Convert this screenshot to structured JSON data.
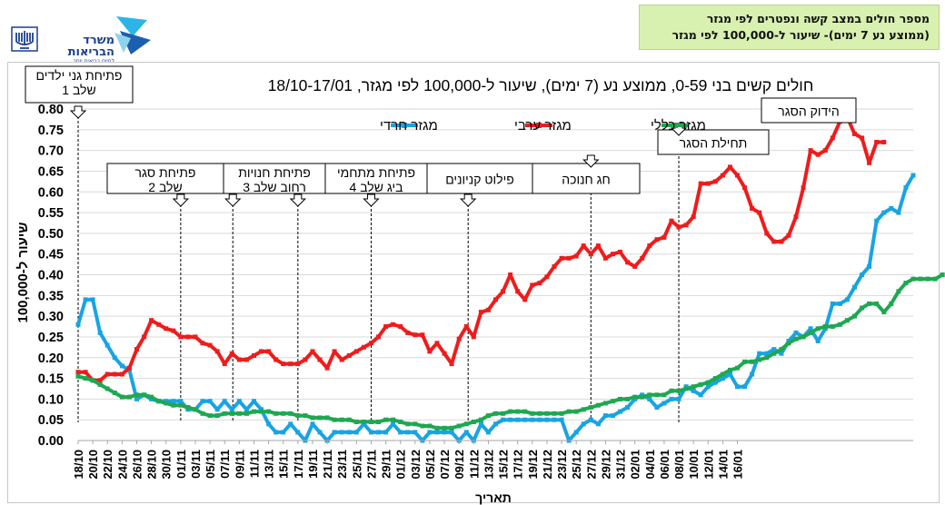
{
  "header": {
    "line1": "מספר חולים במצב קשה ונפטרים לפי מגזר",
    "line2": "(ממוצע נע 7 ימים)- שיעור ל-100,000 לפי מגזר"
  },
  "logo": {
    "name_line1": "משרד",
    "name_line2": "הבריאות",
    "tagline": "לחיים בריאים יותר"
  },
  "colors": {
    "haredi": "#18a4e3",
    "arab": "#ee1c1c",
    "general": "#1fa752"
  },
  "chart_data": {
    "type": "line",
    "title": "חולים קשים בני 0-59, ממוצע נע (7 ימים), שיעור ל-100,000 לפי מגזר, 18/10-17/01",
    "xlabel": "תאריך",
    "ylabel": "שיעור ל-100,000",
    "ylim": [
      0,
      0.8
    ],
    "y_ticks": [
      "0.00",
      "0.05",
      "0.10",
      "0.15",
      "0.20",
      "0.25",
      "0.30",
      "0.35",
      "0.40",
      "0.45",
      "0.50",
      "0.55",
      "0.60",
      "0.65",
      "0.70",
      "0.75",
      "0.80"
    ],
    "x_ticks": [
      "18/10",
      "20/10",
      "22/10",
      "24/10",
      "26/10",
      "28/10",
      "30/10",
      "01/11",
      "03/11",
      "05/11",
      "07/11",
      "09/11",
      "11/11",
      "13/11",
      "15/11",
      "17/11",
      "19/11",
      "21/11",
      "23/11",
      "25/11",
      "27/11",
      "29/11",
      "01/12",
      "03/12",
      "05/12",
      "07/12",
      "09/12",
      "11/12",
      "13/12",
      "15/12",
      "17/12",
      "19/12",
      "21/12",
      "23/12",
      "25/12",
      "27/12",
      "29/12",
      "31/12",
      "02/01",
      "04/01",
      "06/01",
      "08/01",
      "10/01",
      "12/01",
      "14/01",
      "16/01"
    ],
    "legend_position": "top",
    "series": [
      {
        "name": "מגזר חרדי",
        "color": "#18a4e3",
        "values": [
          0.28,
          0.34,
          0.34,
          0.26,
          0.23,
          0.2,
          0.18,
          0.17,
          0.1,
          0.11,
          0.1,
          0.095,
          0.095,
          0.095,
          0.095,
          0.075,
          0.075,
          0.095,
          0.095,
          0.075,
          0.095,
          0.075,
          0.095,
          0.075,
          0.095,
          0.075,
          0.04,
          0.02,
          0.02,
          0.04,
          0.02,
          0.0,
          0.04,
          0.02,
          0.0,
          0.02,
          0.02,
          0.02,
          0.02,
          0.04,
          0.02,
          0.02,
          0.02,
          0.04,
          0.02,
          0.02,
          0.02,
          0.0,
          0.02,
          0.02,
          0.02,
          0.02,
          0.0,
          0.02,
          0.0,
          0.04,
          0.02,
          0.04,
          0.05,
          0.05,
          0.05,
          0.05,
          0.05,
          0.05,
          0.05,
          0.05,
          0.05,
          0.0,
          0.02,
          0.04,
          0.05,
          0.04,
          0.06,
          0.06,
          0.07,
          0.08,
          0.1,
          0.11,
          0.1,
          0.08,
          0.09,
          0.1,
          0.1,
          0.13,
          0.12,
          0.11,
          0.13,
          0.14,
          0.15,
          0.16,
          0.13,
          0.13,
          0.16,
          0.21,
          0.21,
          0.22,
          0.21,
          0.24,
          0.26,
          0.25,
          0.27,
          0.24,
          0.27,
          0.33,
          0.33,
          0.34,
          0.37,
          0.4,
          0.42,
          0.53,
          0.55,
          0.56,
          0.55,
          0.61,
          0.64
        ]
      },
      {
        "name": "מגזר ערבי",
        "color": "#ee1c1c",
        "values": [
          0.165,
          0.165,
          0.145,
          0.145,
          0.16,
          0.16,
          0.16,
          0.175,
          0.22,
          0.25,
          0.29,
          0.28,
          0.27,
          0.265,
          0.25,
          0.25,
          0.25,
          0.235,
          0.23,
          0.215,
          0.185,
          0.21,
          0.195,
          0.195,
          0.205,
          0.215,
          0.215,
          0.195,
          0.185,
          0.185,
          0.185,
          0.195,
          0.215,
          0.195,
          0.175,
          0.215,
          0.195,
          0.205,
          0.215,
          0.225,
          0.235,
          0.25,
          0.275,
          0.28,
          0.275,
          0.26,
          0.255,
          0.255,
          0.215,
          0.235,
          0.21,
          0.185,
          0.245,
          0.275,
          0.25,
          0.31,
          0.315,
          0.34,
          0.36,
          0.4,
          0.36,
          0.34,
          0.375,
          0.38,
          0.395,
          0.42,
          0.44,
          0.44,
          0.445,
          0.47,
          0.45,
          0.47,
          0.44,
          0.45,
          0.455,
          0.43,
          0.42,
          0.44,
          0.47,
          0.485,
          0.49,
          0.53,
          0.515,
          0.52,
          0.54,
          0.62,
          0.62,
          0.625,
          0.64,
          0.66,
          0.64,
          0.61,
          0.56,
          0.55,
          0.5,
          0.48,
          0.48,
          0.495,
          0.54,
          0.61,
          0.7,
          0.69,
          0.7,
          0.73,
          0.77,
          0.78,
          0.74,
          0.73,
          0.67,
          0.72,
          0.72
        ]
      },
      {
        "name": "מגזר כללי",
        "color": "#1fa752",
        "values": [
          0.155,
          0.15,
          0.145,
          0.135,
          0.125,
          0.115,
          0.105,
          0.105,
          0.11,
          0.11,
          0.105,
          0.095,
          0.09,
          0.085,
          0.085,
          0.08,
          0.075,
          0.065,
          0.06,
          0.06,
          0.065,
          0.065,
          0.065,
          0.065,
          0.07,
          0.07,
          0.07,
          0.065,
          0.065,
          0.065,
          0.06,
          0.06,
          0.055,
          0.055,
          0.055,
          0.05,
          0.05,
          0.05,
          0.045,
          0.045,
          0.045,
          0.045,
          0.05,
          0.05,
          0.045,
          0.04,
          0.04,
          0.035,
          0.035,
          0.03,
          0.03,
          0.03,
          0.035,
          0.04,
          0.045,
          0.05,
          0.06,
          0.065,
          0.065,
          0.07,
          0.07,
          0.07,
          0.065,
          0.065,
          0.065,
          0.065,
          0.065,
          0.07,
          0.07,
          0.075,
          0.08,
          0.085,
          0.09,
          0.095,
          0.1,
          0.1,
          0.105,
          0.105,
          0.11,
          0.11,
          0.11,
          0.12,
          0.12,
          0.125,
          0.13,
          0.135,
          0.14,
          0.15,
          0.16,
          0.17,
          0.175,
          0.19,
          0.19,
          0.195,
          0.2,
          0.21,
          0.22,
          0.235,
          0.245,
          0.25,
          0.26,
          0.27,
          0.275,
          0.275,
          0.28,
          0.29,
          0.3,
          0.32,
          0.33,
          0.33,
          0.31,
          0.33,
          0.36,
          0.38,
          0.39,
          0.39,
          0.39,
          0.39,
          0.4
        ]
      }
    ],
    "annotations": [
      {
        "label_lines": [
          "פתיחת גני ילדים",
          "שלב 1"
        ],
        "tick": "18/10"
      },
      {
        "label_lines": [
          "פתיחת סגר",
          "שלב 2"
        ],
        "tick": "01/11"
      },
      {
        "label_lines": [
          "פתיחת חנויות",
          "רחוב שלב 3"
        ],
        "tick": "08/11"
      },
      {
        "label_lines": [
          "פתיחת מתחמי",
          "ביג שלב 4"
        ],
        "tick": "17/11"
      },
      {
        "label_lines": [
          "פילוט קניונים"
        ],
        "tick": "27/11"
      },
      {
        "label_lines": [
          "חג חנוכה"
        ],
        "tick": "10/12"
      },
      {
        "label_lines": [
          "תחילת הסגר"
        ],
        "tick": "27/12"
      },
      {
        "label_lines": [
          "הידוק הסגר"
        ],
        "tick": "08/01"
      }
    ]
  }
}
